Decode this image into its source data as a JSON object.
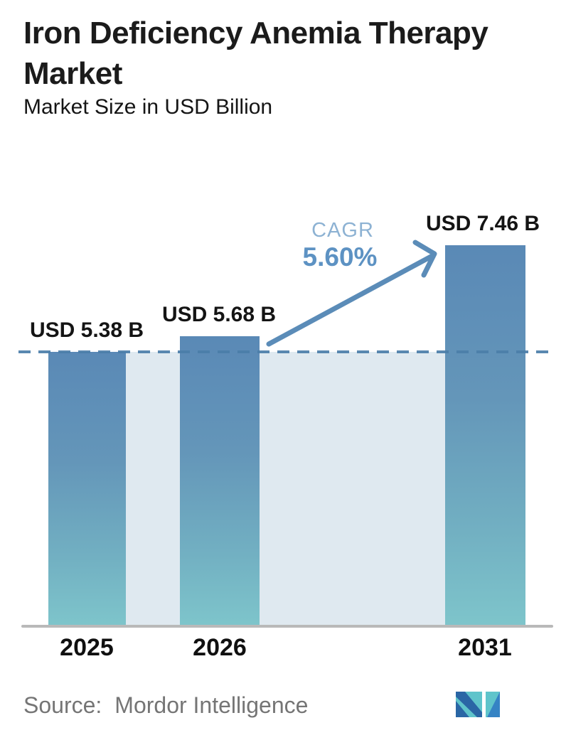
{
  "header": {
    "title": "Iron Deficiency Anemia Therapy Market",
    "subtitle": "Market Size in USD Billion"
  },
  "cagr": {
    "label": "CAGR",
    "value": "5.60%"
  },
  "source": {
    "label": "Source:",
    "name": "Mordor Intelligence",
    "logo_icon": "mordor-intelligence-logo"
  },
  "chart_data": {
    "type": "bar",
    "title": "Iron Deficiency Anemia Therapy Market",
    "subtitle": "Market Size in USD Billion",
    "categories": [
      "2025",
      "2026",
      "2031"
    ],
    "values": [
      5.38,
      5.68,
      7.46
    ],
    "bar_labels": [
      "USD 5.38 B",
      "USD 5.68 B",
      "USD 7.46 B"
    ],
    "unit": "USD Billion",
    "xlabel": "",
    "ylabel": "Market Size in USD Billion",
    "ylim": [
      0,
      8
    ],
    "grid": false,
    "legend": false,
    "reference_line": {
      "value": 5.38,
      "style": "dashed"
    },
    "annotation": {
      "label": "CAGR",
      "value": "5.60%",
      "arrow_from": "2026",
      "arrow_to": "2031"
    },
    "colors": {
      "bar_gradient_top": "#5a89b6",
      "bar_gradient_bottom": "#7ec5cb",
      "band_fill": "#dfe9f0",
      "dashed_line": "#4b7ea9",
      "arrow": "#5b8cb8",
      "cagr_label": "#8db2d3",
      "cagr_value": "#5d92c3",
      "axis": "#b9b9b9",
      "label_text": "#141414",
      "source_text": "#757575",
      "logo_teal": "#5fc4cb",
      "logo_blue_dark": "#2a66a5",
      "logo_blue_light": "#3583c4"
    }
  }
}
